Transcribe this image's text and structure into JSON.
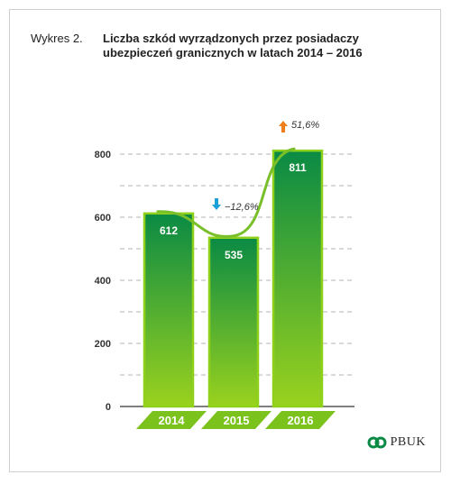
{
  "title": {
    "prefix": "Wykres 2.",
    "main": "Liczba szkód wyrządzonych przez posiadaczy ubezpieczeń granicznych w latach 2014 – 2016"
  },
  "logo": {
    "text": "PBUK"
  },
  "colors": {
    "bar_top": "#0a8a44",
    "bar_bottom": "#9ad21e",
    "bar_border": "#8fd11a",
    "trend_line": "#78bf2a",
    "label_band": "#7cc21c",
    "arrow_down": "#1aa0d8",
    "arrow_up": "#f07d1c",
    "grid": "#9a9a9a"
  },
  "chart_data": {
    "type": "bar",
    "categories": [
      "2014",
      "2015",
      "2016"
    ],
    "values": [
      612,
      535,
      811
    ],
    "data_labels": [
      "612",
      "535",
      "811"
    ],
    "changes": [
      {
        "between": [
          "2014",
          "2015"
        ],
        "label": "−12,6%",
        "direction": "down"
      },
      {
        "between": [
          "2015",
          "2016"
        ],
        "label": "51,6%",
        "direction": "up"
      }
    ],
    "y_ticks": [
      0,
      200,
      400,
      600,
      800
    ],
    "y_tick_labels": [
      "0",
      "200",
      "400",
      "600",
      "800"
    ],
    "ylim": [
      0,
      900
    ],
    "grid": true,
    "grid_style": "dashed",
    "trend_line": true,
    "title": "Liczba szkód wyrządzonych przez posiadaczy ubezpieczeń granicznych w latach 2014 – 2016",
    "xlabel": "",
    "ylabel": ""
  }
}
